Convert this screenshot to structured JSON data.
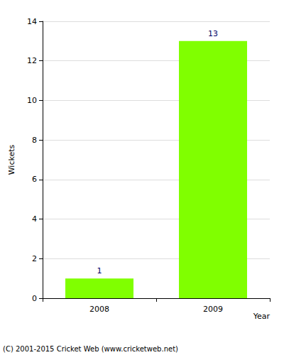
{
  "chart_data": {
    "type": "bar",
    "categories": [
      "2008",
      "2009"
    ],
    "values": [
      1,
      13
    ],
    "color": "#80ff00",
    "xlabel": "Year",
    "ylabel": "Wickets",
    "ylim": [
      0,
      14
    ],
    "yticks": [
      0,
      2,
      4,
      6,
      8,
      10,
      12,
      14
    ],
    "grid": true,
    "data_labels": true,
    "annotation": "(C) 2001-2015 Cricket Web (www.cricketweb.net)"
  }
}
